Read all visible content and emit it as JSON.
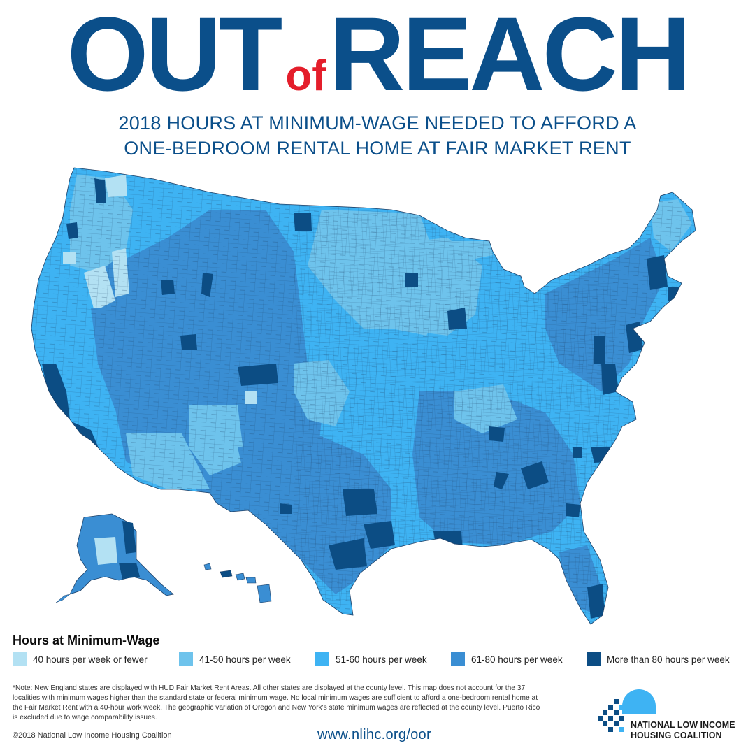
{
  "header": {
    "title_part1": "OUT",
    "title_part2": "of",
    "title_part3": "REACH",
    "subtitle_line1": "2018 HOURS AT MINIMUM-WAGE NEEDED TO AFFORD A",
    "subtitle_line2": "ONE-BEDROOM RENTAL HOME AT FAIR MARKET RENT"
  },
  "legend": {
    "title": "Hours at Minimum-Wage",
    "items": [
      {
        "label": "40 hours per week or fewer",
        "color": "#b3e1f3"
      },
      {
        "label": "41-50 hours per week",
        "color": "#6ec3ec"
      },
      {
        "label": "51-60 hours per week",
        "color": "#3eb3f3"
      },
      {
        "label": "61-80 hours per week",
        "color": "#3a8ed3"
      },
      {
        "label": "More than 80 hours per week",
        "color": "#0c4d84"
      }
    ]
  },
  "note": "*Note: New England states are displayed with HUD Fair Market Rent Areas. All other states are displayed at the county level. This map does not account for the 37 localities with minimum wages higher than the standard state or federal minimum wage. No local minimum wages are sufficient to afford a one-bedroom rental home at the Fair Market Rent with a 40-hour work week. The geographic variation of Oregon and New York's state minimum wages are reflected at the county level. Puerto Rico is excluded due to wage comparability issues.",
  "copyright": "©2018 National Low Income Housing Coalition",
  "url": "www.nlihc.org/oor",
  "logo": {
    "line1": "NATIONAL LOW INCOME",
    "line2": "HOUSING COALITION"
  },
  "colors": {
    "title": "#0b4f8a",
    "accent": "#e41e2b",
    "county_border": "#1d3f66"
  }
}
